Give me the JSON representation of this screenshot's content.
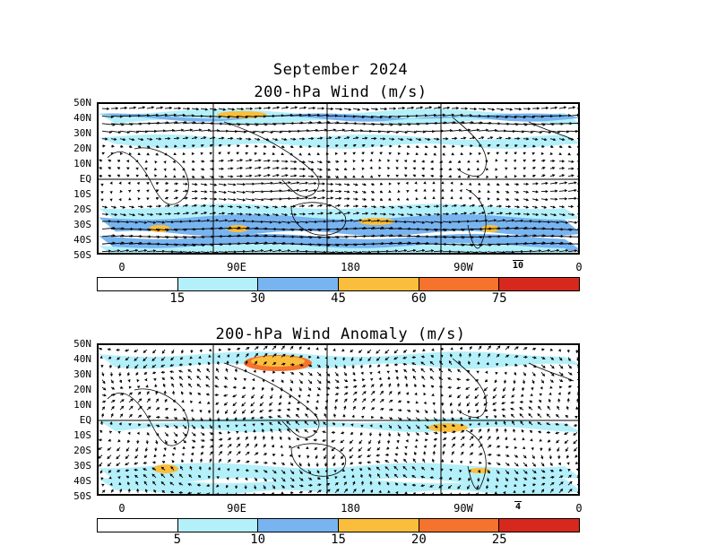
{
  "main_title": "September 2024",
  "panels": [
    {
      "title": "200-hPa Wind (m/s)",
      "lat_labels": [
        "50N",
        "40N",
        "30N",
        "20N",
        "10N",
        "EQ",
        "10S",
        "20S",
        "30S",
        "40S",
        "50S"
      ],
      "lon_labels": [
        "0",
        "90E",
        "180",
        "90W",
        "0"
      ],
      "reference_vector": "10",
      "colorbar": {
        "labels": [
          "15",
          "30",
          "45",
          "60",
          "75"
        ],
        "colors": [
          "#ffffff",
          "#b4f0fa",
          "#78b4f0",
          "#fabe3c",
          "#f5732d",
          "#d7281e"
        ]
      }
    },
    {
      "title": "200-hPa Wind Anomaly (m/s)",
      "lat_labels": [
        "50N",
        "40N",
        "30N",
        "20N",
        "10N",
        "EQ",
        "10S",
        "20S",
        "30S",
        "40S",
        "50S"
      ],
      "lon_labels": [
        "0",
        "90E",
        "180",
        "90W",
        "0"
      ],
      "reference_vector": "4",
      "colorbar": {
        "labels": [
          "5",
          "10",
          "15",
          "20",
          "25"
        ],
        "colors": [
          "#ffffff",
          "#b4f0fa",
          "#78b4f0",
          "#fabe3c",
          "#f5732d",
          "#d7281e"
        ]
      }
    }
  ]
}
